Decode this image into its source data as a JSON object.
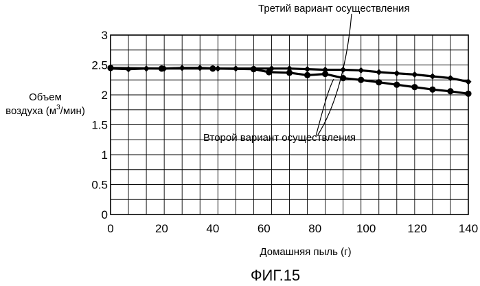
{
  "chart_data": {
    "type": "line",
    "xlabel": "Домашняя пыль (г)",
    "ylabel_line1": "Объем",
    "ylabel_line2_prefix": "воздуха (м",
    "ylabel_sup": "3",
    "ylabel_line2_suffix": "/мин)",
    "caption": "ФИГ.15",
    "xlim": [
      0,
      140
    ],
    "ylim": [
      0,
      3
    ],
    "xticks": [
      "0",
      "20",
      "40",
      "60",
      "80",
      "100",
      "120",
      "140"
    ],
    "yticks": [
      "0",
      "0.5",
      "1",
      "1.5",
      "2",
      "2.5",
      "3"
    ],
    "grid": true,
    "series": [
      {
        "name": "Второй вариант осуществления",
        "marker": "circle",
        "x": [
          0,
          20,
          40,
          56,
          62,
          70,
          77,
          84,
          91,
          98,
          105,
          112,
          119,
          126,
          133,
          140
        ],
        "y": [
          2.45,
          2.44,
          2.44,
          2.43,
          2.38,
          2.37,
          2.33,
          2.35,
          2.28,
          2.25,
          2.21,
          2.17,
          2.13,
          2.09,
          2.06,
          2.02
        ]
      },
      {
        "name": "Третий вариант осуществления",
        "marker": "diamond",
        "x": [
          0,
          7,
          14,
          21,
          28,
          35,
          42,
          49,
          56,
          63,
          70,
          77,
          84,
          91,
          98,
          105,
          112,
          119,
          126,
          133,
          140
        ],
        "y": [
          2.44,
          2.43,
          2.44,
          2.44,
          2.45,
          2.45,
          2.44,
          2.44,
          2.44,
          2.44,
          2.44,
          2.43,
          2.42,
          2.42,
          2.41,
          2.38,
          2.36,
          2.34,
          2.31,
          2.28,
          2.22
        ]
      }
    ]
  }
}
